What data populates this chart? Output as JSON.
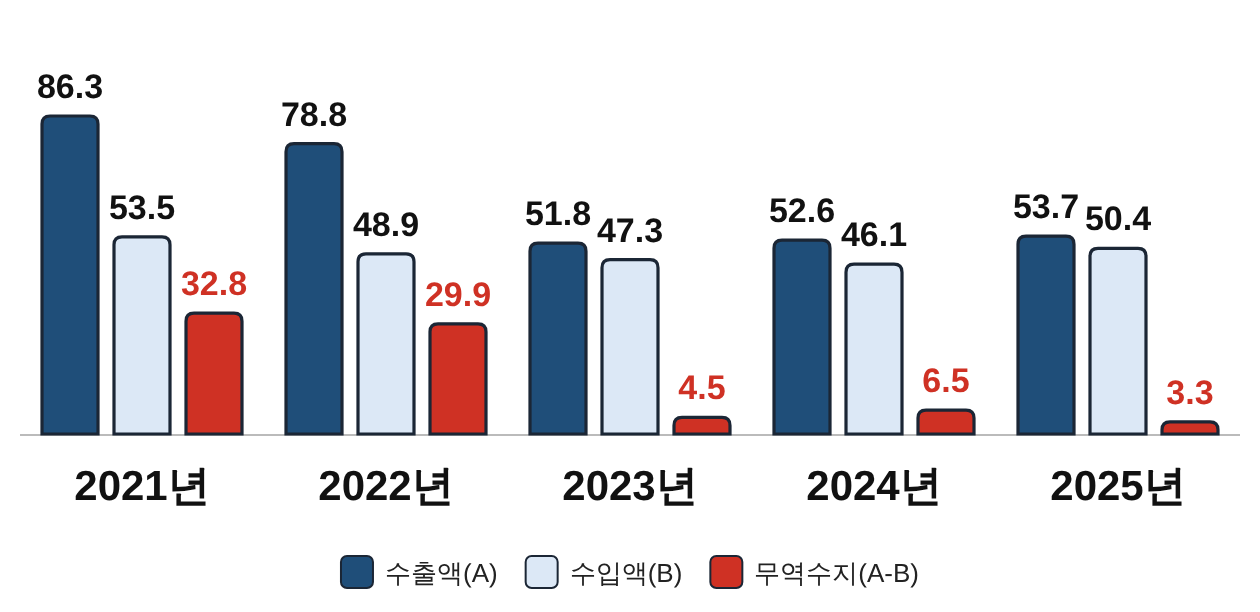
{
  "chart_data": {
    "type": "bar",
    "categories": [
      "2021년",
      "2022년",
      "2023년",
      "2024년",
      "2025년"
    ],
    "series": [
      {
        "name": "수출액(A)",
        "color": "#1f4e79",
        "values": [
          86.3,
          78.8,
          51.8,
          52.6,
          53.7
        ]
      },
      {
        "name": "수입액(B)",
        "color": "#dce8f6",
        "values": [
          53.5,
          48.9,
          47.3,
          46.1,
          50.4
        ]
      },
      {
        "name": "무역수지(A-B)",
        "color": "#cf3124",
        "values": [
          32.8,
          29.9,
          4.5,
          6.5,
          3.3
        ]
      }
    ],
    "data_labels": true,
    "legend": "bottom",
    "grid": false
  }
}
